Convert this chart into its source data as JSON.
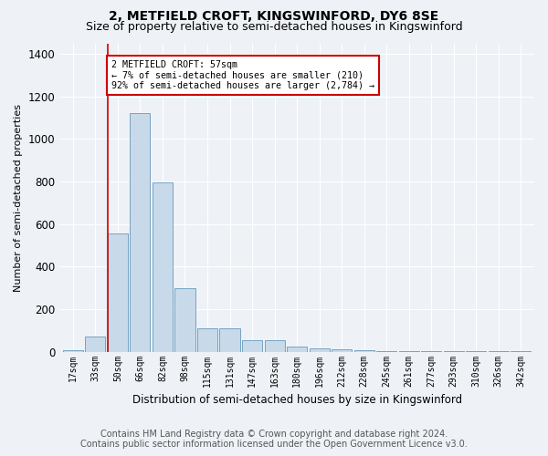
{
  "title": "2, METFIELD CROFT, KINGSWINFORD, DY6 8SE",
  "subtitle": "Size of property relative to semi-detached houses in Kingswinford",
  "xlabel": "Distribution of semi-detached houses by size in Kingswinford",
  "ylabel": "Number of semi-detached properties",
  "bar_labels": [
    "17sqm",
    "33sqm",
    "50sqm",
    "66sqm",
    "82sqm",
    "98sqm",
    "115sqm",
    "131sqm",
    "147sqm",
    "163sqm",
    "180sqm",
    "196sqm",
    "212sqm",
    "228sqm",
    "245sqm",
    "261sqm",
    "277sqm",
    "293sqm",
    "310sqm",
    "326sqm",
    "342sqm"
  ],
  "bar_values": [
    5,
    70,
    555,
    1120,
    795,
    300,
    110,
    110,
    55,
    55,
    25,
    15,
    10,
    5,
    3,
    2,
    2,
    1,
    1,
    1,
    1
  ],
  "bar_color": "#c8daea",
  "bar_edge_color": "#6699bb",
  "marker_line_color": "#cc0000",
  "annotation_text": "2 METFIELD CROFT: 57sqm\n← 7% of semi-detached houses are smaller (210)\n92% of semi-detached houses are larger (2,784) →",
  "annotation_box_color": "#ffffff",
  "annotation_box_edge_color": "#cc0000",
  "ylim": [
    0,
    1450
  ],
  "yticks": [
    0,
    200,
    400,
    600,
    800,
    1000,
    1200,
    1400
  ],
  "footer_line1": "Contains HM Land Registry data © Crown copyright and database right 2024.",
  "footer_line2": "Contains public sector information licensed under the Open Government Licence v3.0.",
  "bg_color": "#eef2f7",
  "plot_bg_color": "#eef2f7",
  "grid_color": "#ffffff",
  "title_fontsize": 10,
  "subtitle_fontsize": 9,
  "footer_fontsize": 7
}
